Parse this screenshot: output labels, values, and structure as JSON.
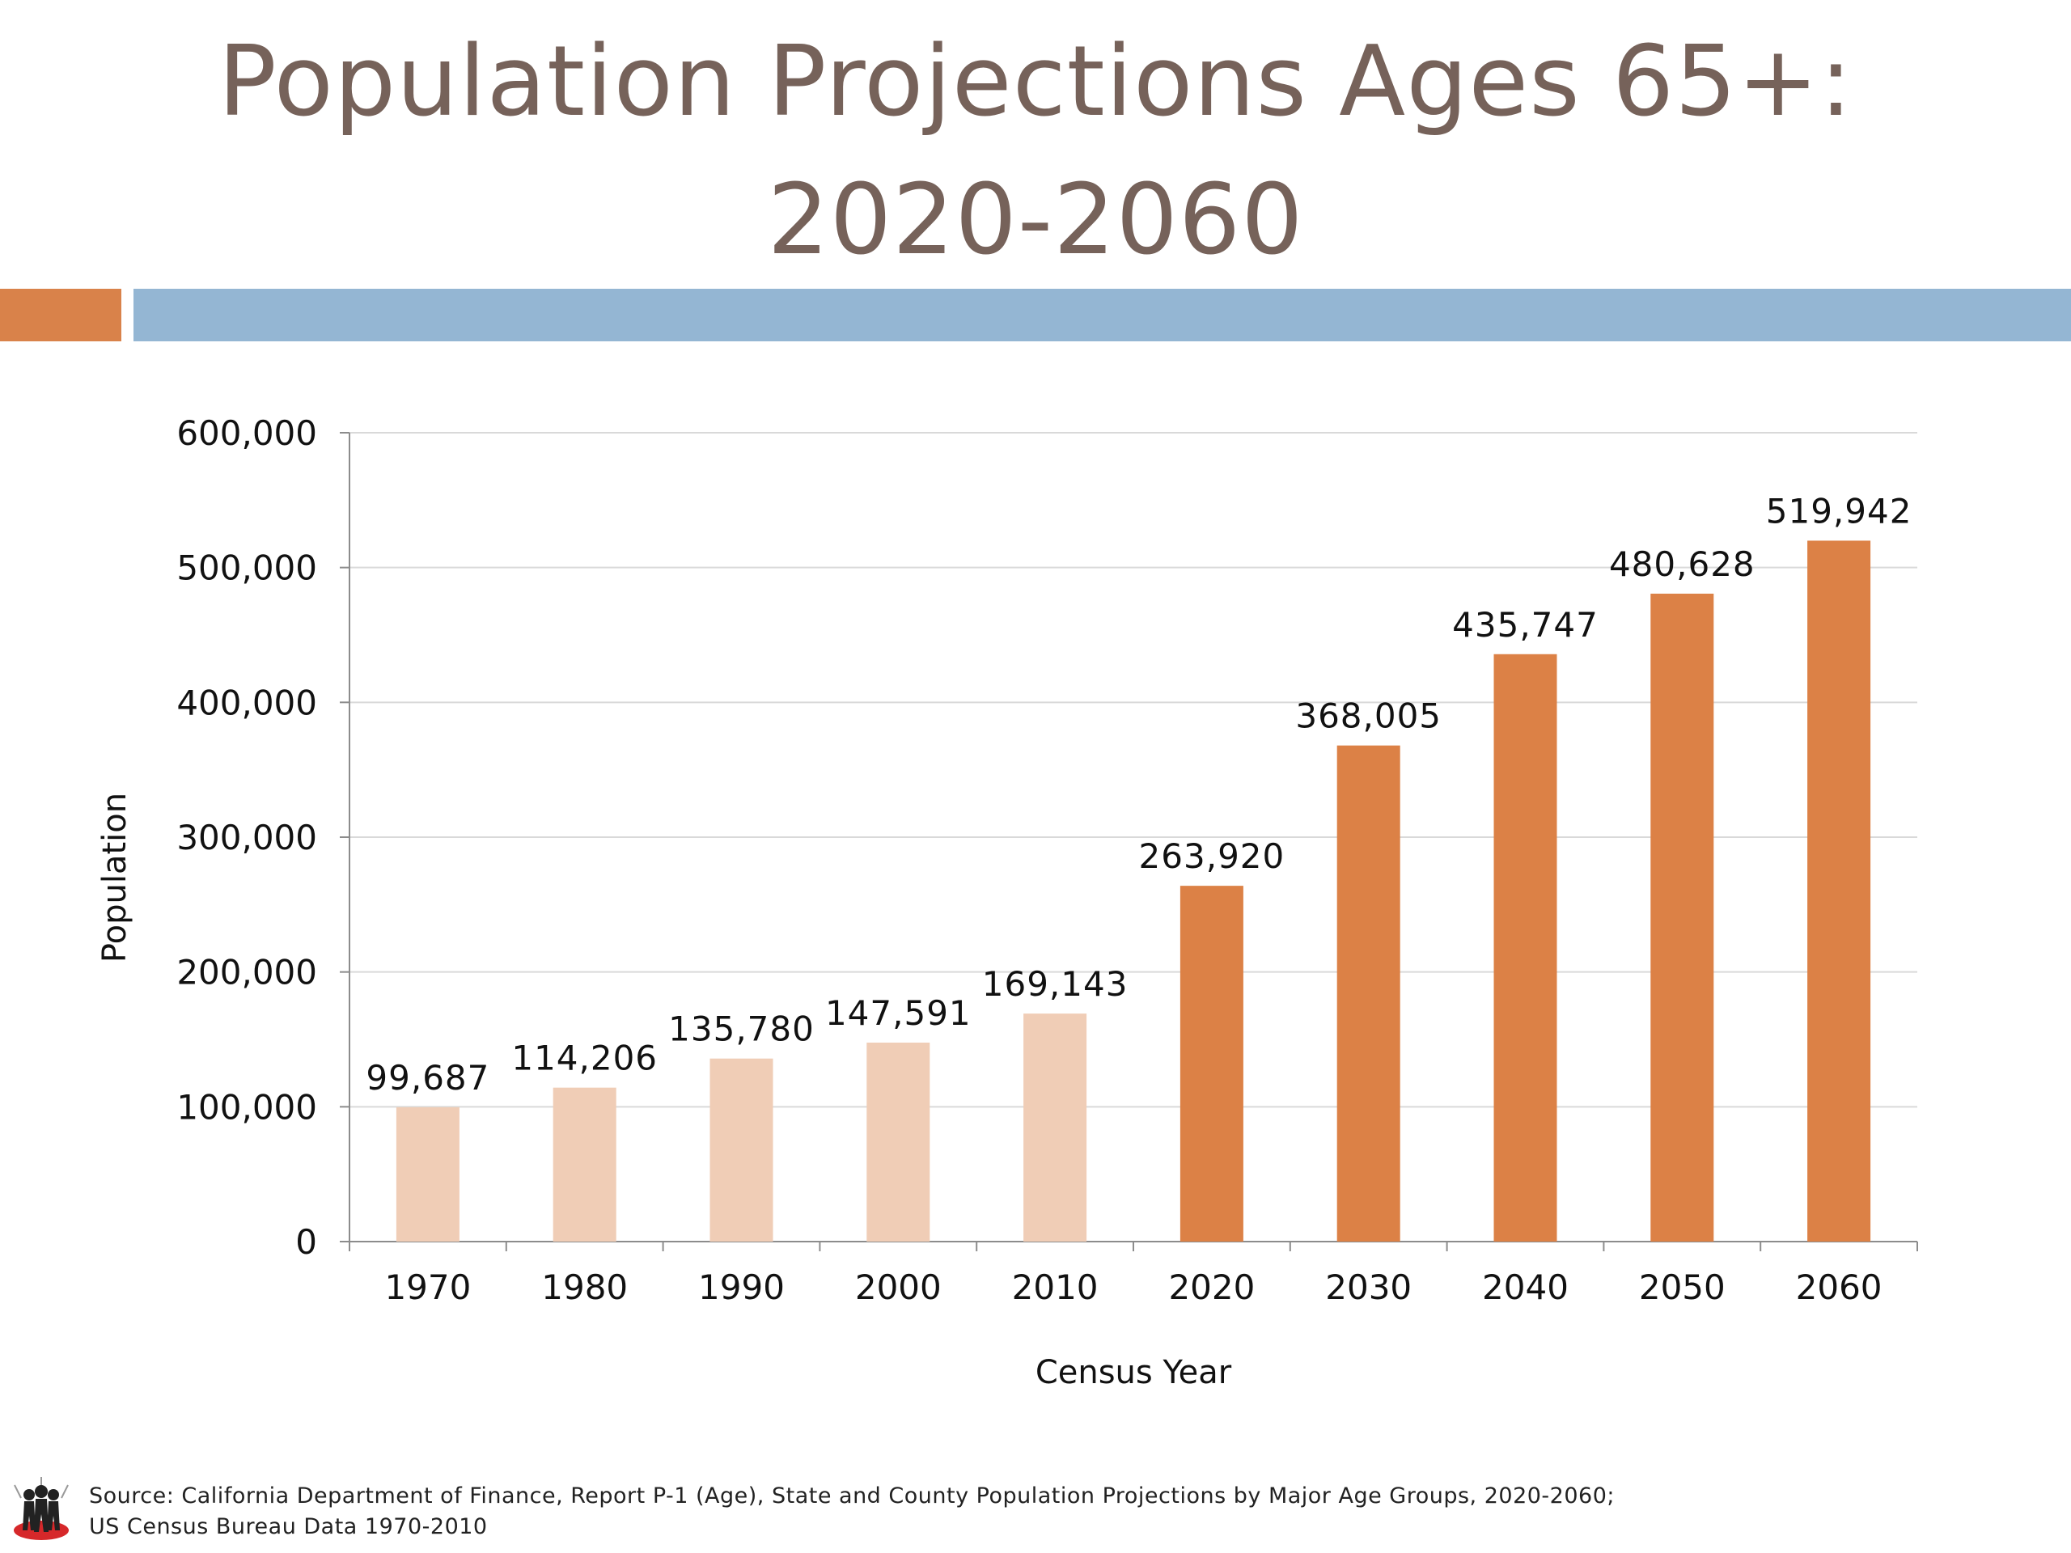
{
  "slide": {
    "title_line_1": "Population Projections Ages 65+:",
    "title_line_2": "2020-2060",
    "accent_colors": {
      "left_block": "#d9824a",
      "right_band": "#94b6d3"
    }
  },
  "chart_data": {
    "type": "bar",
    "categories": [
      "1970",
      "1980",
      "1990",
      "2000",
      "2010",
      "2020",
      "2030",
      "2040",
      "2050",
      "2060"
    ],
    "values": [
      99687,
      114206,
      135780,
      147591,
      169143,
      263920,
      368005,
      435747,
      480628,
      519942
    ],
    "data_labels": [
      "99,687",
      "114,206",
      "135,780",
      "147,591",
      "169,143",
      "263,920",
      "368,005",
      "435,747",
      "480,628",
      "519,942"
    ],
    "bar_colors": [
      "#f0cdb6",
      "#f0cdb6",
      "#f0cdb6",
      "#f0cdb6",
      "#f0cdb6",
      "#dc8146",
      "#dc8146",
      "#dc8146",
      "#dc8146",
      "#dc8146"
    ],
    "xlabel": "Census Year",
    "ylabel": "Population",
    "ylim": [
      0,
      600000
    ],
    "yticks": [
      0,
      100000,
      200000,
      300000,
      400000,
      500000,
      600000
    ],
    "ytick_labels": [
      "0",
      "100,000",
      "200,000",
      "300,000",
      "400,000",
      "500,000",
      "600,000"
    ],
    "grid": true,
    "legend": "none"
  },
  "footer": {
    "source_line_1": "Source:  California Department of Finance, Report P-1 (Age), State and County Population Projections by Major Age Groups, 2020-2060;",
    "source_line_2": "US Census Bureau Data 1970-2010",
    "logo_icon": "people-logo-icon"
  }
}
